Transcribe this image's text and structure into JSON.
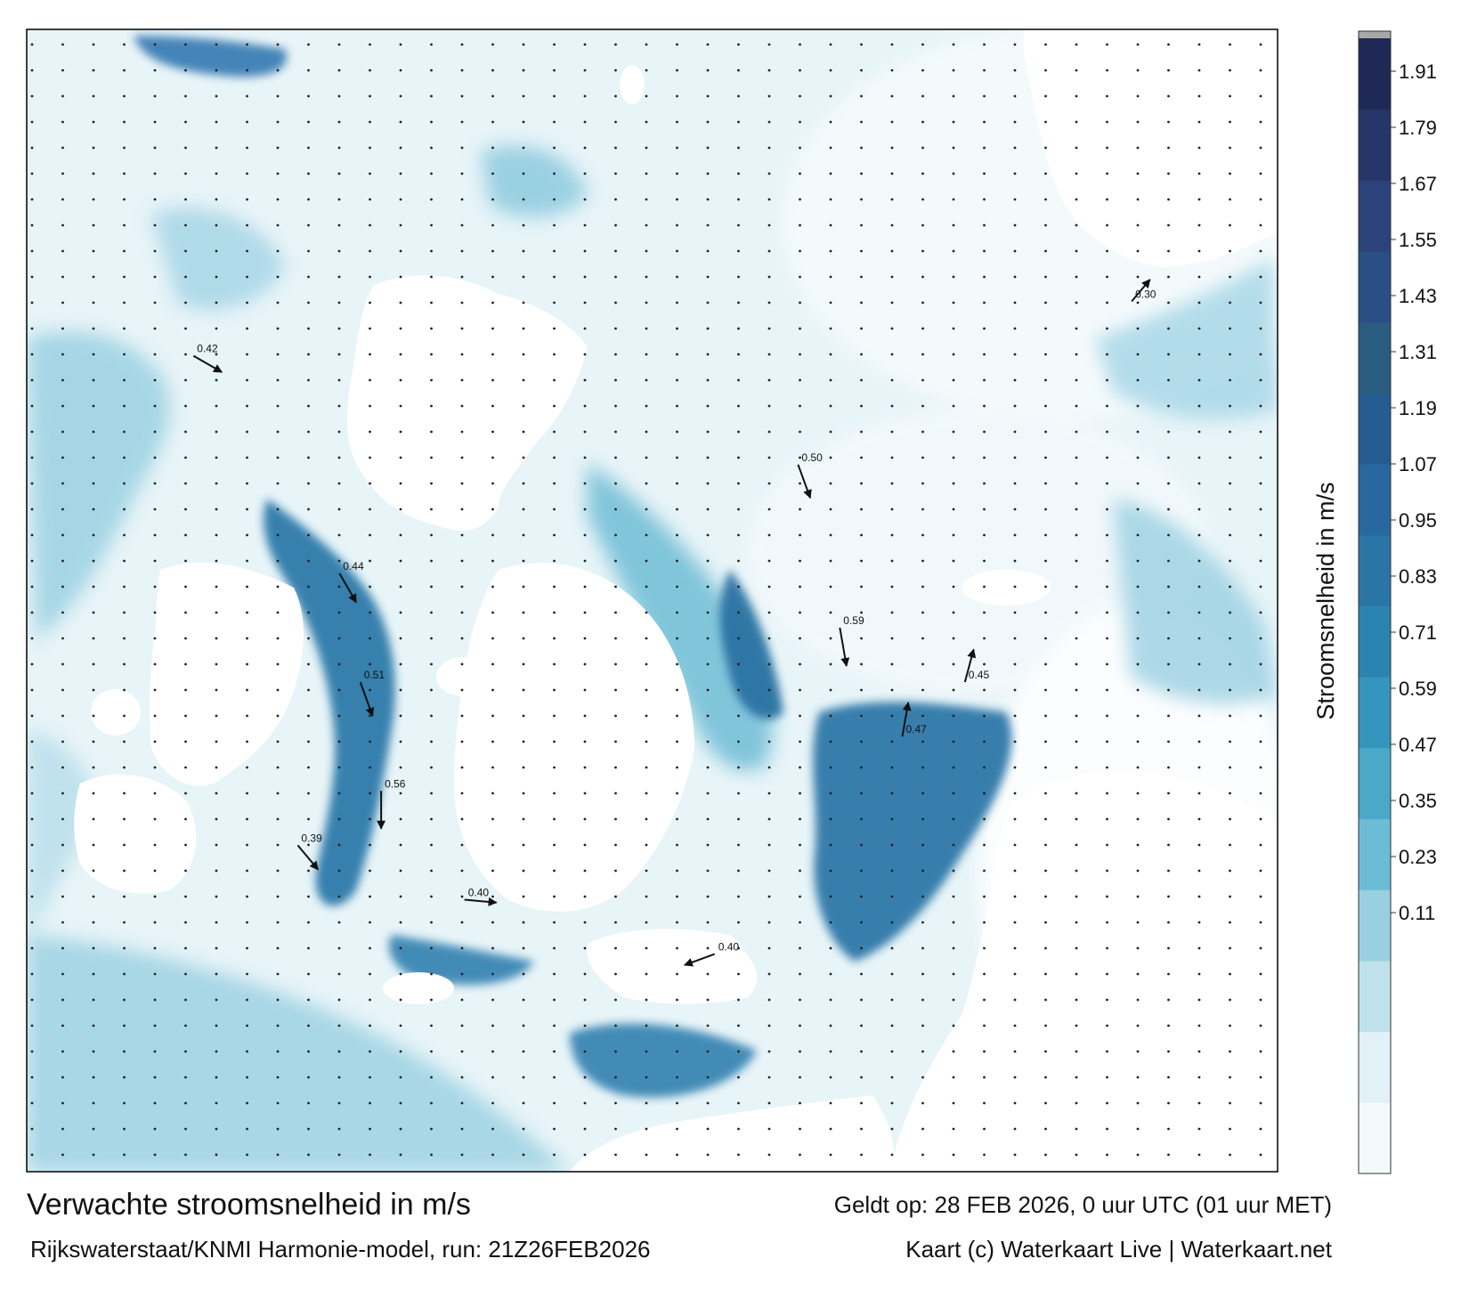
{
  "title": "Verwachte stroomsnelheid in m/s",
  "valid_time": "Geldt op: 28 FEB 2026, 0 uur UTC (01 uur MET)",
  "source": "Rijkswaterstaat/KNMI Harmonie-model, run: 21Z26FEB2026",
  "credit": "Kaart (c) Waterkaart Live | Waterkaart.net",
  "colorbar": {
    "label": "Stroomsnelheid in m/s",
    "ticks": [
      "1.91",
      "1.79",
      "1.67",
      "1.55",
      "1.43",
      "1.31",
      "1.19",
      "1.07",
      "0.95",
      "0.83",
      "0.71",
      "0.59",
      "0.47",
      "0.35",
      "0.23",
      "0.11"
    ],
    "colors": [
      "#f4fafc",
      "#e1f1f6",
      "#bfe1ec",
      "#99d0e1",
      "#6dbcd5",
      "#4aa8c8",
      "#3496bc",
      "#2c83b0",
      "#2a75a6",
      "#29689e",
      "#275c93",
      "#2a5b80",
      "#2a4f84",
      "#2a437a",
      "#26356a",
      "#1e2a55"
    ],
    "top_color": "#a8a8a8"
  },
  "colors": {
    "land": "#ffffff",
    "sea_light": "#e7f4f8",
    "sea_mid": "#7cc4da",
    "sea_dark": "#2d78a8",
    "arrow": "#111111"
  },
  "vectors": [
    {
      "lon": 3.6,
      "lat": 51.2,
      "speed": 0.51,
      "dir": 160
    },
    {
      "lon": 3.7,
      "lat": 51.0,
      "speed": 0.56,
      "dir": 180
    },
    {
      "lon": 3.5,
      "lat": 51.4,
      "speed": 0.44,
      "dir": 150
    },
    {
      "lon": 3.3,
      "lat": 50.9,
      "speed": 0.39,
      "dir": 140
    },
    {
      "lon": 4.1,
      "lat": 50.8,
      "speed": 0.4,
      "dir": 95
    },
    {
      "lon": 5.7,
      "lat": 51.6,
      "speed": 0.5,
      "dir": 160
    },
    {
      "lon": 5.9,
      "lat": 51.3,
      "speed": 0.59,
      "dir": 170
    },
    {
      "lon": 6.2,
      "lat": 51.1,
      "speed": 0.47,
      "dir": 10
    },
    {
      "lon": 6.5,
      "lat": 51.2,
      "speed": 0.45,
      "dir": 15
    },
    {
      "lon": 5.3,
      "lat": 50.7,
      "speed": 0.4,
      "dir": 250
    },
    {
      "lon": 2.8,
      "lat": 51.8,
      "speed": 0.42,
      "dir": 120
    },
    {
      "lon": 7.3,
      "lat": 51.9,
      "speed": 0.3,
      "dir": 40
    }
  ]
}
